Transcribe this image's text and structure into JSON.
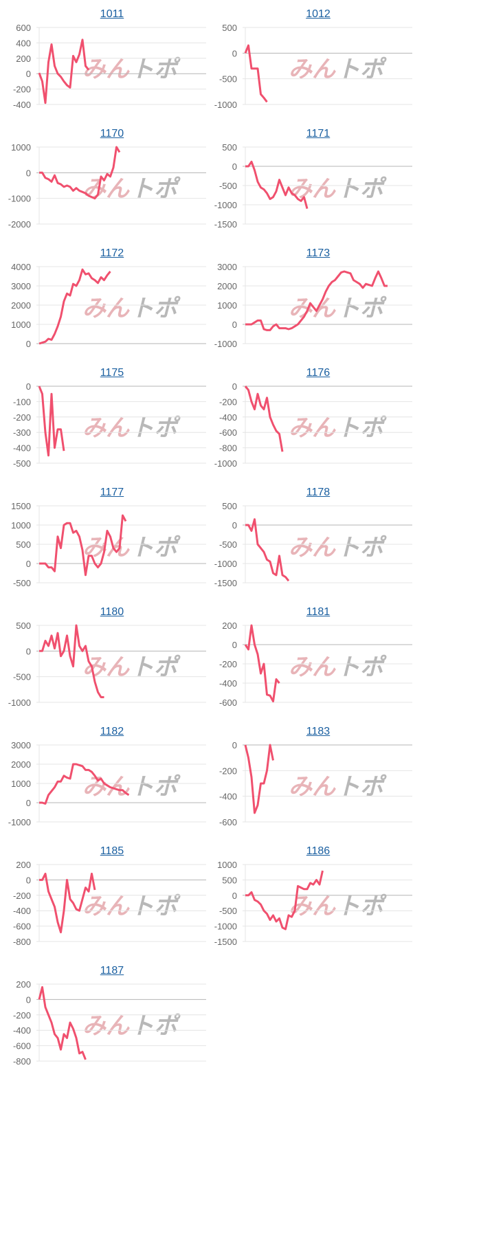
{
  "watermark": {
    "left": "みん",
    "right": "トポ"
  },
  "colors": {
    "line": "#f0506e",
    "grid": "#e4e4e4",
    "zero_axis": "#b5b5b5",
    "tick_text": "#666666",
    "title_link": "#1a5fa0",
    "watermark_pink": "#e8b4b8",
    "watermark_gray": "#b8b8b8"
  },
  "chart_data": [
    {
      "type": "line",
      "title": "1011",
      "ylim": [
        -400,
        600
      ],
      "yticks": [
        600,
        400,
        200,
        0,
        -200,
        -400
      ],
      "grid": true,
      "values": [
        10,
        -100,
        -380,
        150,
        380,
        100,
        0,
        -40,
        -100,
        -150,
        -180,
        230,
        150,
        250,
        440,
        100,
        50
      ]
    },
    {
      "type": "line",
      "title": "1012",
      "ylim": [
        -1000,
        500
      ],
      "yticks": [
        500,
        0,
        -500,
        -1000
      ],
      "grid": true,
      "values": [
        0,
        150,
        -300,
        -300,
        -300,
        -800,
        -870,
        -950
      ]
    },
    {
      "type": "line",
      "title": "1170",
      "ylim": [
        -2000,
        1000
      ],
      "yticks": [
        1000,
        0,
        -1000,
        -2000
      ],
      "grid": true,
      "values": [
        0,
        0,
        -200,
        -250,
        -350,
        -100,
        -400,
        -450,
        -550,
        -500,
        -550,
        -700,
        -600,
        -700,
        -750,
        -800,
        -900,
        -950,
        -1000,
        -850,
        -150,
        -300,
        -50,
        -150,
        200,
        1000,
        800
      ]
    },
    {
      "type": "line",
      "title": "1171",
      "ylim": [
        -1500,
        500
      ],
      "yticks": [
        500,
        0,
        -500,
        -1000,
        -1500
      ],
      "grid": true,
      "values": [
        0,
        0,
        120,
        -100,
        -400,
        -550,
        -600,
        -700,
        -850,
        -800,
        -650,
        -350,
        -550,
        -750,
        -550,
        -700,
        -750,
        -850,
        -900,
        -800,
        -1100
      ]
    },
    {
      "type": "line",
      "title": "1172",
      "ylim": [
        0,
        4000
      ],
      "yticks": [
        4000,
        3000,
        2000,
        1000,
        0
      ],
      "grid": true,
      "values": [
        0,
        50,
        100,
        250,
        200,
        500,
        900,
        1400,
        2200,
        2600,
        2500,
        3100,
        3000,
        3300,
        3850,
        3600,
        3650,
        3400,
        3300,
        3150,
        3450,
        3300,
        3550,
        3750
      ]
    },
    {
      "type": "line",
      "title": "1173",
      "ylim": [
        -1000,
        3000
      ],
      "yticks": [
        3000,
        2000,
        1000,
        0,
        -1000
      ],
      "grid": true,
      "values": [
        0,
        0,
        0,
        100,
        200,
        200,
        -250,
        -300,
        -300,
        -100,
        0,
        -200,
        -200,
        -200,
        -250,
        -200,
        -100,
        0,
        200,
        400,
        700,
        1100,
        900,
        700,
        1000,
        1300,
        1700,
        2000,
        2200,
        2300,
        2500,
        2700,
        2750,
        2700,
        2650,
        2300,
        2200,
        2100,
        1900,
        2100,
        2050,
        2000,
        2400,
        2750,
        2400,
        2000,
        2000
      ]
    },
    {
      "type": "line",
      "title": "1175",
      "ylim": [
        -500,
        0
      ],
      "yticks": [
        0,
        -100,
        -200,
        -300,
        -400,
        -500
      ],
      "grid": true,
      "values": [
        0,
        -50,
        -300,
        -450,
        -50,
        -400,
        -280,
        -280,
        -420
      ]
    },
    {
      "type": "line",
      "title": "1176",
      "ylim": [
        -1000,
        0
      ],
      "yticks": [
        0,
        -200,
        -400,
        -600,
        -800,
        -1000
      ],
      "grid": true,
      "values": [
        0,
        -50,
        -200,
        -300,
        -100,
        -250,
        -300,
        -150,
        -400,
        -500,
        -580,
        -620,
        -850
      ]
    },
    {
      "type": "line",
      "title": "1177",
      "ylim": [
        -500,
        1500
      ],
      "yticks": [
        1500,
        1000,
        500,
        0,
        -500
      ],
      "grid": true,
      "values": [
        0,
        0,
        0,
        -100,
        -100,
        -200,
        700,
        400,
        1000,
        1050,
        1050,
        800,
        850,
        700,
        350,
        -300,
        200,
        200,
        0,
        -100,
        0,
        300,
        850,
        700,
        400,
        300,
        400,
        1250,
        1100
      ]
    },
    {
      "type": "line",
      "title": "1178",
      "ylim": [
        -1500,
        500
      ],
      "yticks": [
        500,
        0,
        -500,
        -1000,
        -1500
      ],
      "grid": true,
      "values": [
        0,
        0,
        -150,
        150,
        -500,
        -600,
        -700,
        -900,
        -950,
        -1250,
        -1300,
        -800,
        -1300,
        -1350,
        -1450
      ]
    },
    {
      "type": "line",
      "title": "1180",
      "ylim": [
        -1000,
        500
      ],
      "yticks": [
        500,
        0,
        -500,
        -1000
      ],
      "grid": true,
      "values": [
        0,
        0,
        200,
        100,
        300,
        50,
        350,
        -100,
        0,
        300,
        -100,
        -300,
        500,
        100,
        0,
        100,
        -200,
        -300,
        -600,
        -800,
        -900,
        -900
      ]
    },
    {
      "type": "line",
      "title": "1181",
      "ylim": [
        -600,
        200
      ],
      "yticks": [
        200,
        0,
        -200,
        -400,
        -600
      ],
      "grid": true,
      "values": [
        0,
        -50,
        200,
        0,
        -100,
        -300,
        -200,
        -520,
        -530,
        -590,
        -360,
        -400
      ]
    },
    {
      "type": "line",
      "title": "1182",
      "ylim": [
        -1000,
        3000
      ],
      "yticks": [
        3000,
        2000,
        1000,
        0,
        -1000
      ],
      "grid": true,
      "values": [
        0,
        0,
        -50,
        400,
        600,
        800,
        1100,
        1100,
        1400,
        1300,
        1250,
        2000,
        2000,
        1950,
        1900,
        1700,
        1700,
        1600,
        1400,
        1150,
        1250,
        1000,
        900,
        800,
        750,
        700,
        650,
        650,
        500,
        400
      ]
    },
    {
      "type": "line",
      "title": "1183",
      "ylim": [
        -600,
        0
      ],
      "yticks": [
        0,
        -200,
        -400,
        -600
      ],
      "grid": true,
      "values": [
        0,
        -100,
        -250,
        -530,
        -470,
        -300,
        -300,
        -200,
        0,
        -120
      ]
    },
    {
      "type": "line",
      "title": "1185",
      "ylim": [
        -800,
        200
      ],
      "yticks": [
        200,
        0,
        -200,
        -400,
        -600,
        -800
      ],
      "grid": true,
      "values": [
        0,
        0,
        80,
        -150,
        -250,
        -350,
        -550,
        -680,
        -400,
        0,
        -250,
        -300,
        -380,
        -400,
        -250,
        -100,
        -150,
        80,
        -130
      ]
    },
    {
      "type": "line",
      "title": "1186",
      "ylim": [
        -1500,
        1000
      ],
      "yticks": [
        1000,
        500,
        0,
        -500,
        -1000,
        -1500
      ],
      "grid": true,
      "values": [
        0,
        0,
        100,
        -150,
        -200,
        -300,
        -500,
        -600,
        -800,
        -650,
        -850,
        -750,
        -1050,
        -1100,
        -650,
        -700,
        -500,
        300,
        250,
        200,
        200,
        400,
        350,
        500,
        350,
        800
      ]
    },
    {
      "type": "line",
      "title": "1187",
      "ylim": [
        -800,
        200
      ],
      "yticks": [
        200,
        0,
        -200,
        -400,
        -600,
        -800
      ],
      "grid": true,
      "values": [
        0,
        160,
        -100,
        -200,
        -300,
        -450,
        -500,
        -650,
        -450,
        -500,
        -300,
        -380,
        -500,
        -700,
        -680,
        -780
      ]
    }
  ]
}
